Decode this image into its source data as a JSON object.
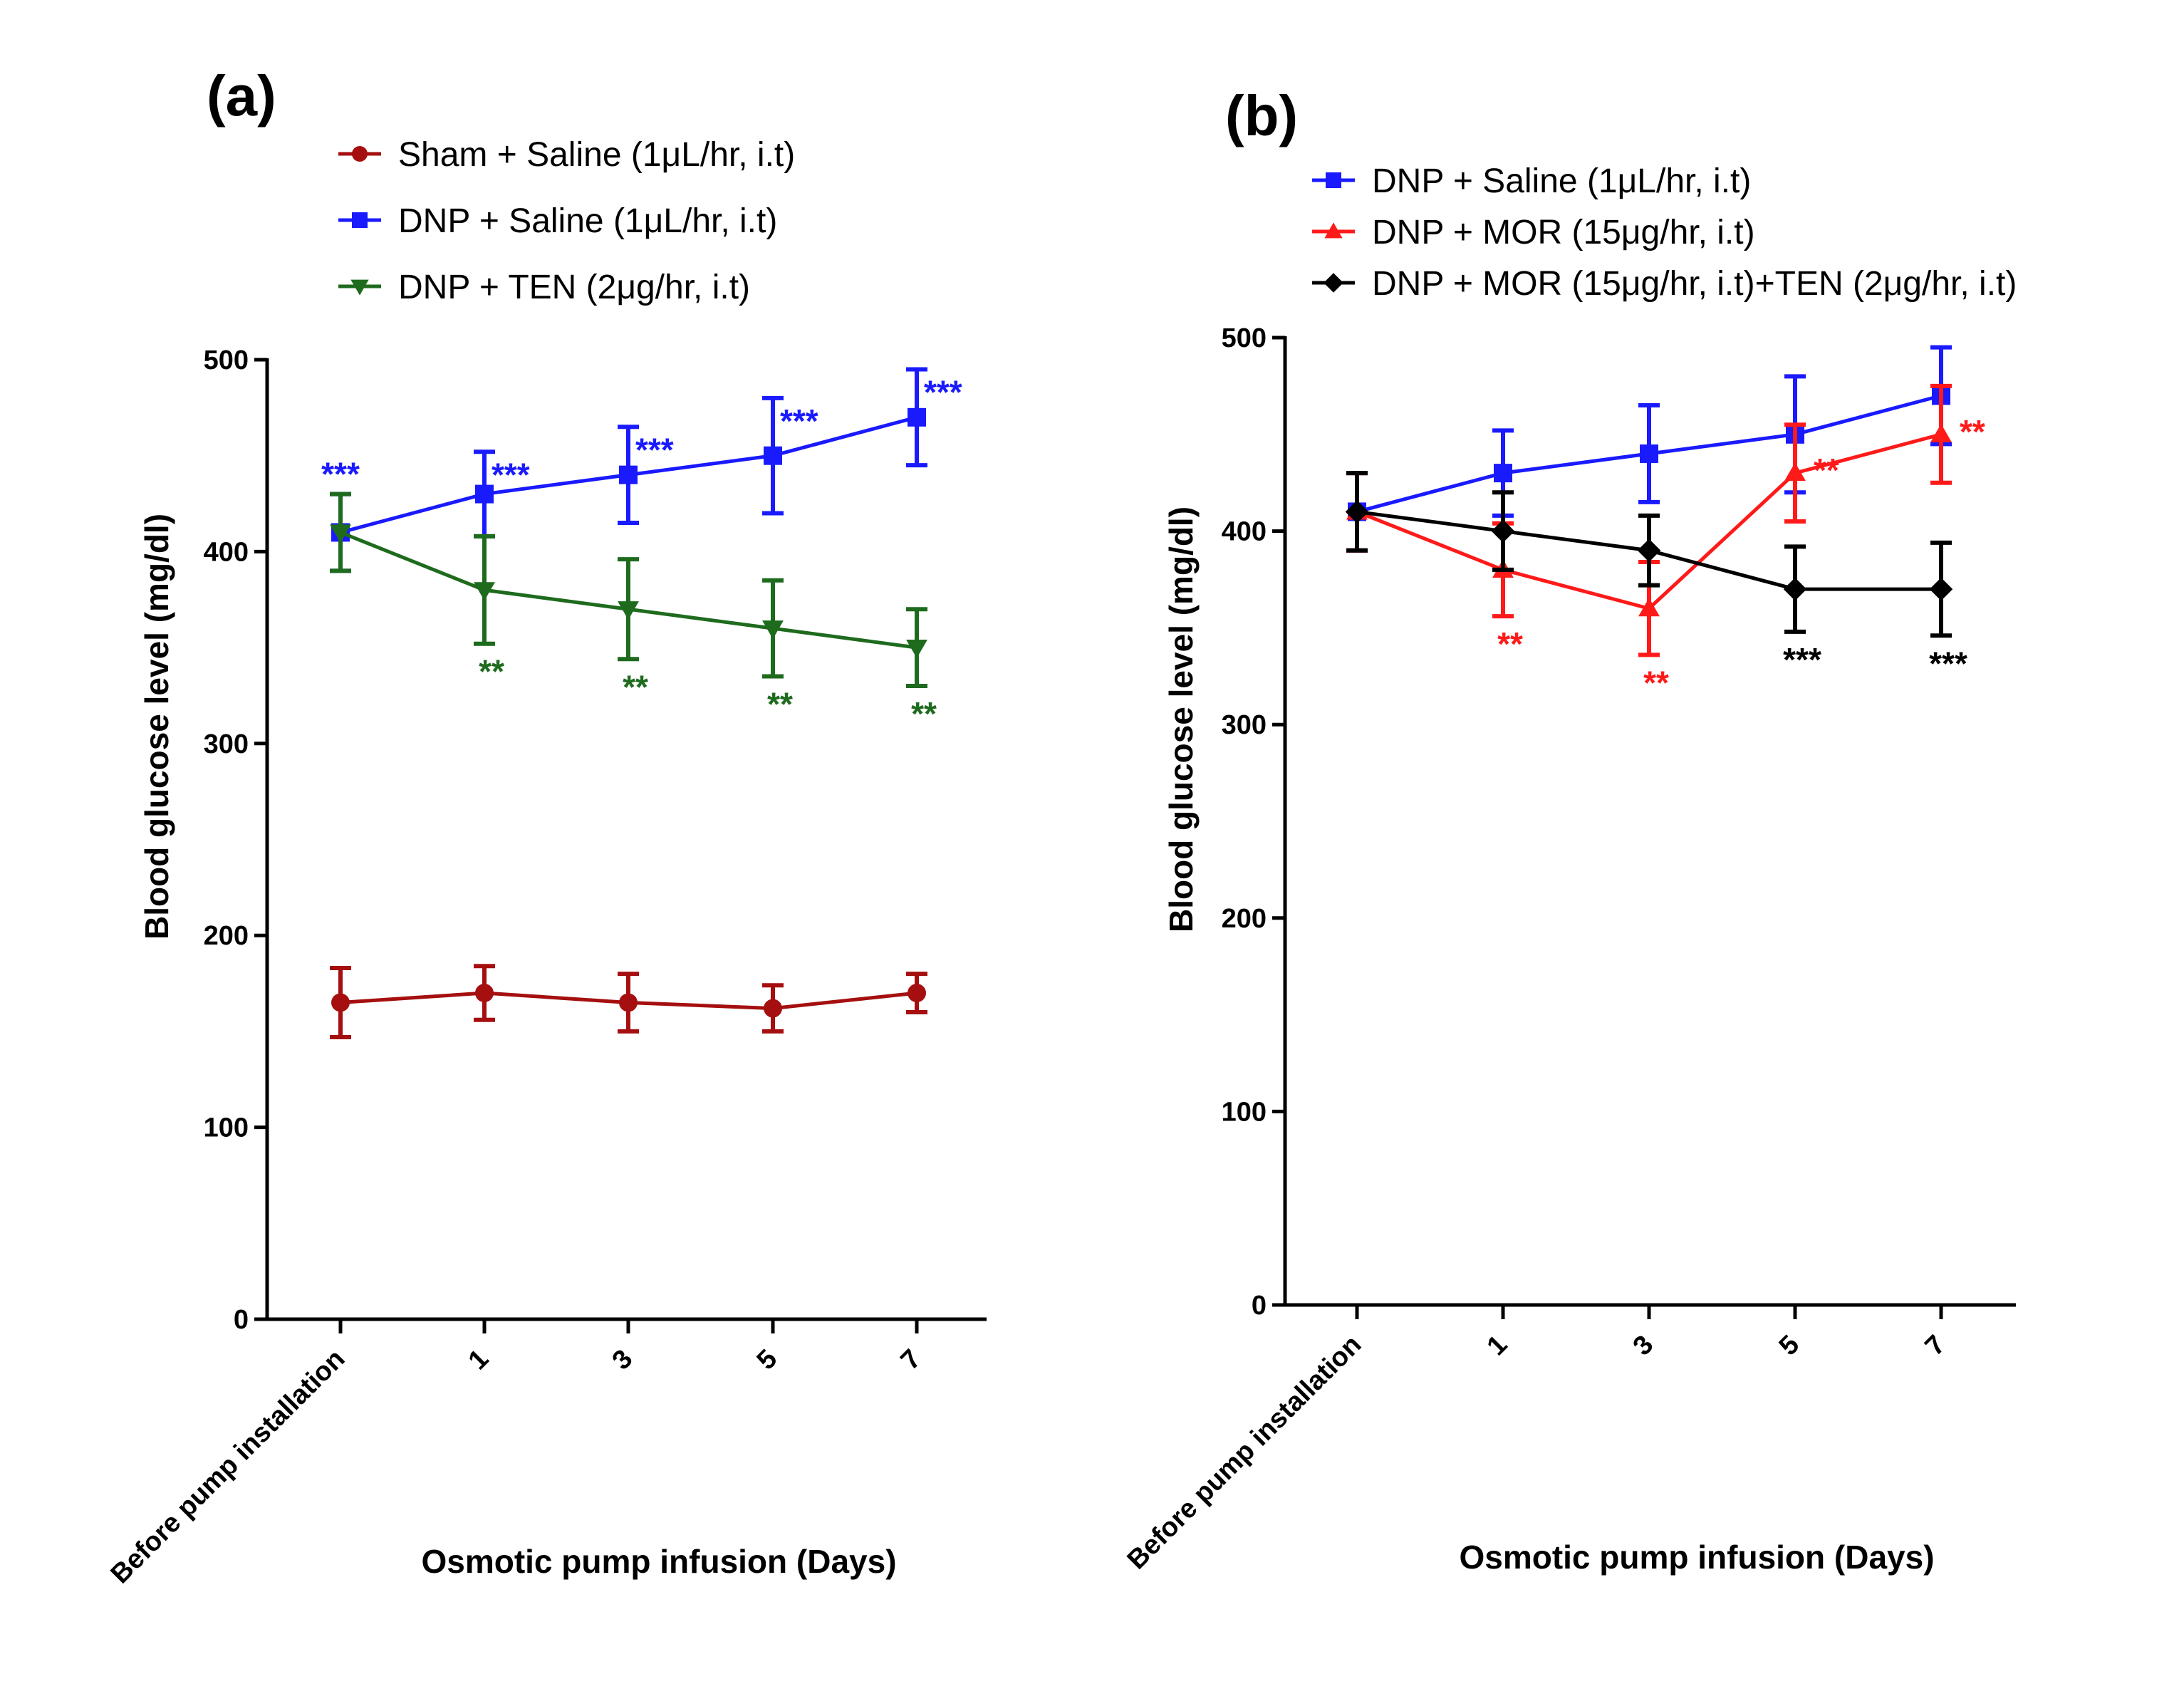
{
  "chart_data": [
    {
      "panel": "(a)",
      "type": "line",
      "xlabel": "Osmotic pump infusion (Days)",
      "ylabel": "Blood glucose level (mg/dl)",
      "ylim": [
        0,
        500
      ],
      "yticks": [
        "0",
        "100",
        "200",
        "300",
        "400",
        "500"
      ],
      "categories": [
        "Before pump installation",
        "1",
        "3",
        "5",
        "7"
      ],
      "legend_position": "top",
      "series": [
        {
          "name": "Sham + Saline (1μL/hr, i.t)",
          "color": "#a50f0f",
          "marker": "circle",
          "values": [
            165,
            170,
            165,
            162,
            170
          ],
          "errors": [
            18,
            14,
            15,
            12,
            10
          ],
          "significance": [
            "",
            "",
            "",
            "",
            ""
          ],
          "sig_placement": "above"
        },
        {
          "name": "DNP + Saline (1μL/hr, i.t)",
          "color": "#1a1aff",
          "marker": "square",
          "values": [
            410,
            430,
            440,
            450,
            470
          ],
          "errors": [
            20,
            22,
            25,
            30,
            25
          ],
          "significance": [
            "***",
            "***",
            "***",
            "***",
            "***"
          ],
          "sig_placement": "above"
        },
        {
          "name": "DNP + TEN (2μg/hr, i.t)",
          "color": "#1e6b1e",
          "marker": "triangle-down",
          "values": [
            410,
            380,
            370,
            360,
            350
          ],
          "errors": [
            20,
            28,
            26,
            25,
            20
          ],
          "significance": [
            "",
            "**",
            "**",
            "**",
            "**"
          ],
          "sig_placement": "below"
        }
      ]
    },
    {
      "panel": "(b)",
      "type": "line",
      "xlabel": "Osmotic pump infusion (Days)",
      "ylabel": "Blood glucose level (mg/dl)",
      "ylim": [
        0,
        500
      ],
      "yticks": [
        "0",
        "100",
        "200",
        "300",
        "400",
        "500"
      ],
      "categories": [
        "Before pump installation",
        "1",
        "3",
        "5",
        "7"
      ],
      "legend_position": "top",
      "series": [
        {
          "name": "DNP + Saline (1μL/hr, i.t)",
          "color": "#1a1aff",
          "marker": "square",
          "values": [
            410,
            430,
            440,
            450,
            470
          ],
          "errors": [
            20,
            22,
            25,
            30,
            25
          ],
          "significance": [
            "",
            "",
            "",
            "",
            ""
          ],
          "sig_placement": "above"
        },
        {
          "name": "DNP + MOR (15μg/hr, i.t)",
          "color": "#ff1a1a",
          "marker": "triangle-up",
          "values": [
            410,
            380,
            360,
            430,
            450
          ],
          "errors": [
            20,
            24,
            24,
            25,
            25
          ],
          "significance": [
            "",
            "**",
            "**",
            "**",
            "**"
          ],
          "sig_placement": "mixed"
        },
        {
          "name": "DNP + MOR (15μg/hr, i.t)+TEN (2μg/hr, i.t)",
          "color": "#000000",
          "marker": "diamond",
          "values": [
            410,
            400,
            390,
            370,
            370
          ],
          "errors": [
            20,
            20,
            18,
            22,
            24
          ],
          "significance": [
            "",
            "",
            "",
            "***",
            "***"
          ],
          "sig_placement": "below"
        }
      ]
    }
  ]
}
